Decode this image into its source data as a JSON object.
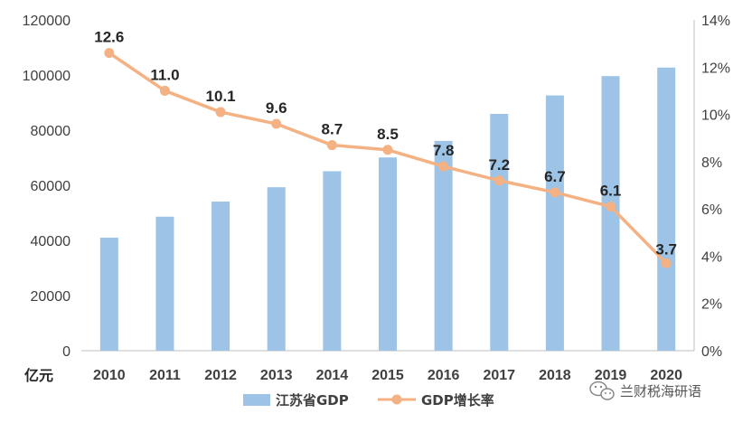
{
  "chart_data": {
    "type": "bar+line",
    "categories": [
      "2010",
      "2011",
      "2012",
      "2013",
      "2014",
      "2015",
      "2016",
      "2017",
      "2018",
      "2019",
      "2020"
    ],
    "series": [
      {
        "name": "江苏省GDP",
        "type": "bar",
        "axis": "left",
        "color": "#9DC3E6",
        "values": [
          41000,
          48600,
          54100,
          59300,
          65100,
          70100,
          76100,
          85900,
          92600,
          99600,
          102700
        ]
      },
      {
        "name": "GDP增长率",
        "type": "line",
        "axis": "right",
        "color": "#F4B183",
        "values": [
          12.6,
          11.0,
          10.1,
          9.6,
          8.7,
          8.5,
          7.8,
          7.2,
          6.7,
          6.1,
          3.7
        ],
        "data_labels": [
          "12.6",
          "11.0",
          "10.1",
          "9.6",
          "8.7",
          "8.5",
          "7.8",
          "7.2",
          "6.7",
          "6.1",
          "3.7"
        ]
      }
    ],
    "y_left": {
      "label": "亿元",
      "ylim": [
        0,
        120000
      ],
      "ticks": [
        "0",
        "20000",
        "40000",
        "60000",
        "80000",
        "100000",
        "120000"
      ]
    },
    "y_right": {
      "ylim": [
        0,
        14
      ],
      "ticks": [
        "0%",
        "2%",
        "4%",
        "6%",
        "8%",
        "10%",
        "12%",
        "14%"
      ]
    },
    "grid": false,
    "legend_position": "bottom"
  },
  "watermark": {
    "text": "兰财税海研语",
    "icon": "wechat-icon"
  }
}
